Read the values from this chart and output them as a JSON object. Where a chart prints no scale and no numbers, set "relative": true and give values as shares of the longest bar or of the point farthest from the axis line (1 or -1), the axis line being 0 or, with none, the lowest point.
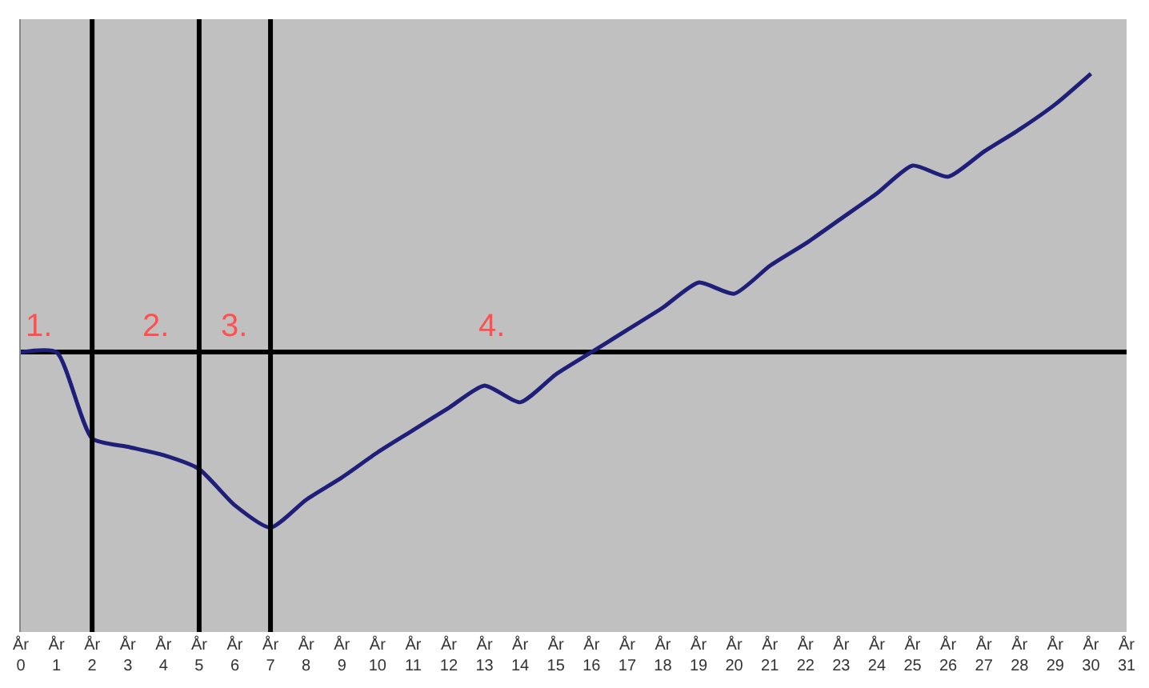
{
  "chart_data": {
    "type": "line",
    "relative": true,
    "categories": [
      "År 0",
      "År 1",
      "År 2",
      "År 3",
      "År 4",
      "År 5",
      "År 6",
      "År 7",
      "År 8",
      "År 9",
      "År 10",
      "År 11",
      "År 12",
      "År 13",
      "År 14",
      "År 15",
      "År 16",
      "År 17",
      "År 18",
      "År 19",
      "År 20",
      "År 21",
      "År 22",
      "År 23",
      "År 24",
      "År 25",
      "År 26",
      "År 27",
      "År 28",
      "År 29",
      "År 30",
      "År 31"
    ],
    "series": [
      {
        "color": "#1f1f7a",
        "values": [
          0,
          0,
          -0.31,
          -0.34,
          -0.37,
          -0.42,
          -0.55,
          -0.63,
          -0.53,
          -0.45,
          -0.36,
          -0.28,
          -0.2,
          -0.12,
          -0.18,
          -0.08,
          0,
          0.08,
          0.16,
          0.25,
          0.21,
          0.31,
          0.39,
          0.48,
          0.57,
          0.67,
          0.63,
          0.72,
          0.8,
          0.89,
          1,
          null
        ]
      }
    ],
    "ref_lines": [
      {
        "axis": "x",
        "value": "År 2",
        "color": "#000000"
      },
      {
        "axis": "x",
        "value": "År 5",
        "color": "#000000"
      },
      {
        "axis": "x",
        "value": "År 7",
        "color": "#000000"
      }
    ],
    "annotations": [
      "1.",
      "2.",
      "3.",
      "4."
    ],
    "marker": "none",
    "line_style": "solid"
  }
}
